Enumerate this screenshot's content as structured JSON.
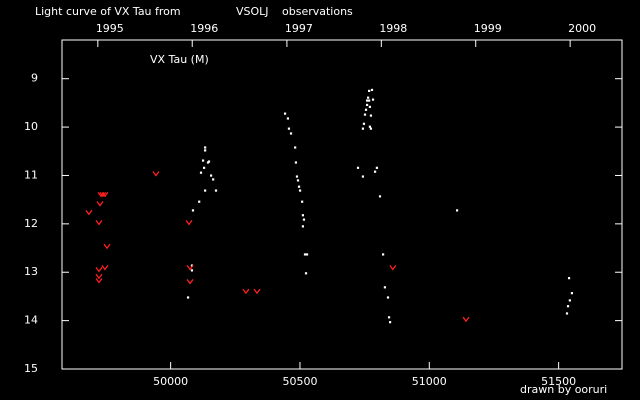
{
  "chart_data": {
    "type": "scatter",
    "title": "Light curve of VX Tau from",
    "source": "VSOLJ",
    "title_suffix": "observations",
    "annotation": "VX Tau (M)",
    "credit": "drawn by ooruri",
    "xlim": [
      49580,
      51745
    ],
    "xticks": [
      50000,
      50500,
      51000,
      51500
    ],
    "x2ticks": [
      {
        "value": 49718.5,
        "label": "1995"
      },
      {
        "value": 50083.5,
        "label": "1996"
      },
      {
        "value": 50449.5,
        "label": "1997"
      },
      {
        "value": 50814.5,
        "label": "1998"
      },
      {
        "value": 51179.5,
        "label": "1999"
      },
      {
        "value": 51544.5,
        "label": "2000"
      }
    ],
    "ylim": [
      8.2,
      15
    ],
    "y_inverted": true,
    "yticks": [
      9,
      10,
      11,
      12,
      13,
      14,
      15
    ],
    "series": [
      {
        "color": "#ffffff",
        "marker": "dot",
        "x": [
          50067,
          50082,
          50082,
          50086,
          50110,
          50117,
          50125,
          50133,
          50133,
          50144,
          50148,
          50156,
          50164,
          50175,
          50129,
          50133,
          50442,
          50453,
          50457,
          50465,
          50481,
          50484,
          50488,
          50492,
          50496,
          50500,
          50508,
          50511,
          50515,
          50511,
          50519,
          50527,
          50523,
          50724,
          50743,
          50743,
          50747,
          50751,
          50755,
          50759,
          50759,
          50763,
          50767,
          50767,
          50770,
          50770,
          50774,
          50774,
          50778,
          50782,
          50790,
          50797,
          50809,
          50821,
          50828,
          50840,
          50844,
          50848,
          51107,
          51540,
          51551,
          51543,
          51536,
          51532
        ],
        "values": [
          13.52,
          12.86,
          12.96,
          11.72,
          11.54,
          10.94,
          10.69,
          10.48,
          10.42,
          10.73,
          10.71,
          11.0,
          11.08,
          11.31,
          10.84,
          11.31,
          9.72,
          9.82,
          10.03,
          10.13,
          10.42,
          10.73,
          11.02,
          11.1,
          11.23,
          11.31,
          11.54,
          11.82,
          11.91,
          12.05,
          12.63,
          12.63,
          13.02,
          10.84,
          11.02,
          10.03,
          9.93,
          9.74,
          9.64,
          9.54,
          9.45,
          9.39,
          9.25,
          9.45,
          9.58,
          9.99,
          9.76,
          10.03,
          9.23,
          9.43,
          10.92,
          10.84,
          11.43,
          12.63,
          13.31,
          13.52,
          13.93,
          14.03,
          11.72,
          13.12,
          13.43,
          13.58,
          13.7,
          13.85
        ]
      },
      {
        "color": "#ff2020",
        "marker": "v",
        "x": [
          49684,
          49723,
          49731,
          49738,
          49727,
          49746,
          49754,
          49746,
          49723,
          49723,
          49723,
          49943,
          50071,
          50075,
          50075,
          50291,
          50334,
          50859,
          51142
        ],
        "values": [
          11.76,
          11.97,
          11.39,
          11.39,
          11.58,
          11.39,
          12.46,
          12.9,
          12.94,
          13.08,
          13.17,
          10.96,
          11.97,
          13.19,
          12.9,
          13.39,
          13.39,
          12.9,
          13.97
        ]
      }
    ],
    "title_color": "#ffffff",
    "source_color": "#ffff33",
    "credit_color": "#33ffff",
    "axis_color": "#ffffff"
  }
}
